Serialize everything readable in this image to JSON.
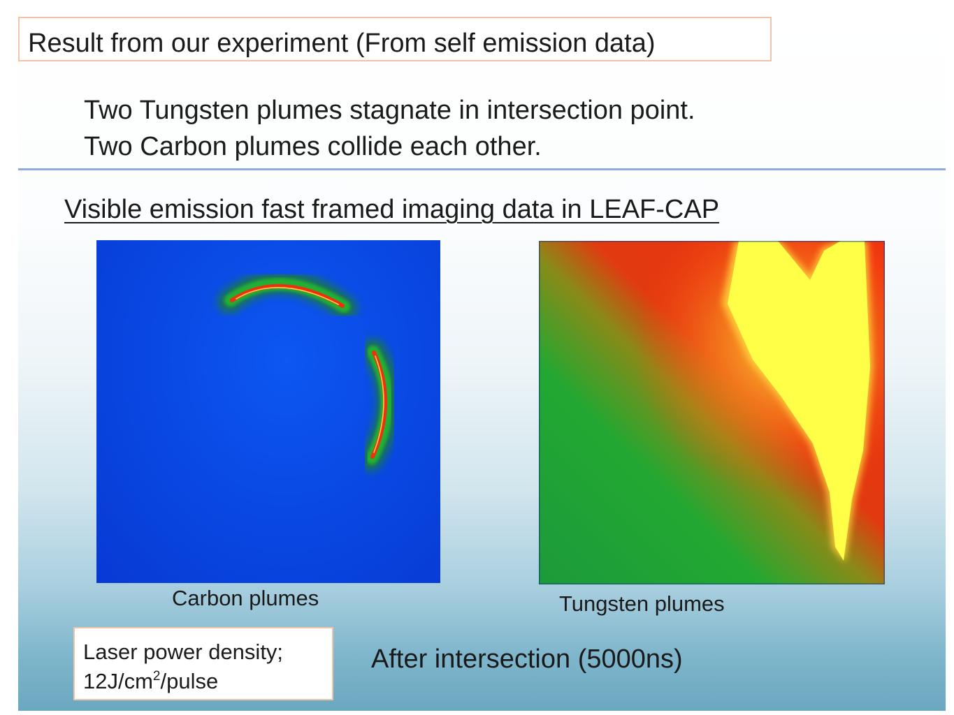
{
  "slide": {
    "title": "Result from our experiment (From self emission data)",
    "findings": [
      "Two Tungsten plumes stagnate in intersection point.",
      "Two Carbon plumes collide each other."
    ],
    "subtitle": "Visible emission fast framed imaging data in LEAF-CAP"
  },
  "images": {
    "carbon": {
      "caption": "Carbon plumes",
      "icon": "carbon-plume-emission-image"
    },
    "tungsten": {
      "caption": "Tungsten plumes",
      "icon": "tungsten-plume-emission-image"
    }
  },
  "laser": {
    "label": "Laser power density;",
    "value_prefix": "12J/cm",
    "value_exponent": "2",
    "value_suffix": "/pulse"
  },
  "timing": "After intersection (5000ns)",
  "colors": {
    "title_box_border": "#f0c4a8",
    "divider": "#8fa8e0",
    "false_color_low": "#0a49e4",
    "false_color_mid": "#22a832",
    "false_color_high": "#ee3010",
    "false_color_peak": "#ffff44"
  }
}
